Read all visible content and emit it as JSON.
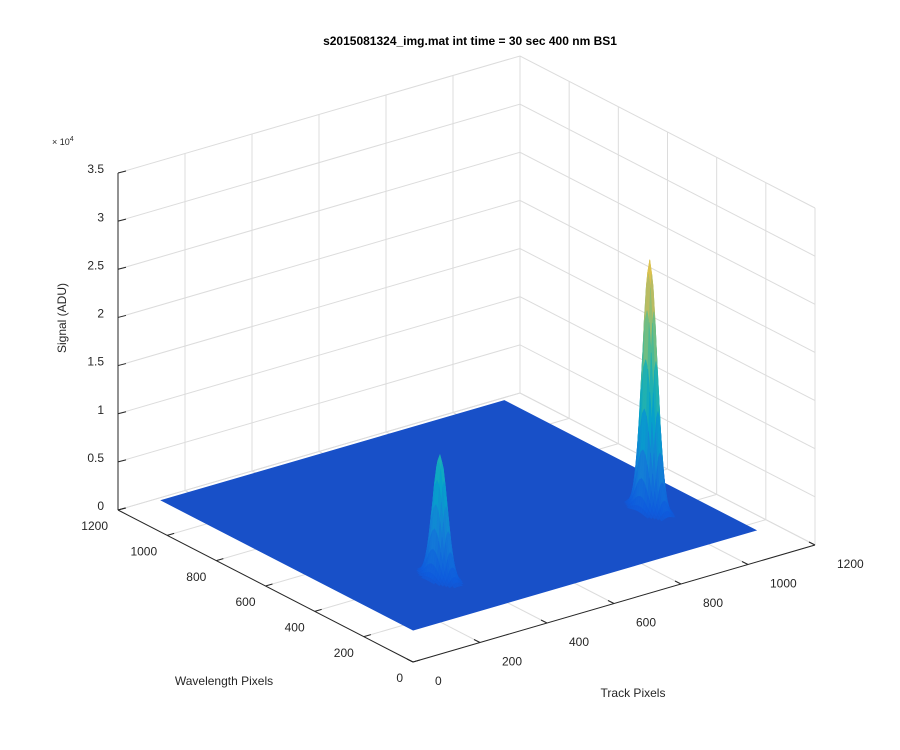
{
  "chart_data": {
    "type": "surface",
    "title": "s2015081324_img.mat int time = 30 sec  400 nm BS1",
    "xlabel": "Track Pixels",
    "ylabel": "Wavelength Pixels",
    "zlabel": "Signal (ADU)",
    "z_multiplier": {
      "base": "× 10",
      "exponent": "4"
    },
    "xlim": [
      0,
      1200
    ],
    "xticks": [
      0,
      200,
      400,
      600,
      800,
      1000,
      1200
    ],
    "ylim": [
      0,
      1200
    ],
    "yticks": [
      0,
      200,
      400,
      600,
      800,
      1000,
      1200
    ],
    "zlim": [
      0,
      35000
    ],
    "zticks": [
      0,
      {
        "value": 5000,
        "label": "0.5"
      },
      {
        "value": 10000,
        "label": "1"
      },
      {
        "value": 15000,
        "label": "1.5"
      },
      {
        "value": 20000,
        "label": "2"
      },
      {
        "value": 25000,
        "label": "2.5"
      },
      {
        "value": 30000,
        "label": "3"
      },
      {
        "value": 35000,
        "label": "3.5"
      }
    ],
    "grid": true,
    "colormap": "parula",
    "surface": {
      "x_range": [
        1,
        1024
      ],
      "y_range": [
        1,
        1024
      ],
      "base": 3300,
      "peaks": [
        {
          "x": 244,
          "y": 223,
          "z": 16100,
          "sigma_x": 12,
          "sigma_y": 25
        },
        {
          "x": 896,
          "y": 258,
          "z": 29300,
          "sigma_x": 12,
          "sigma_y": 25
        }
      ]
    }
  }
}
